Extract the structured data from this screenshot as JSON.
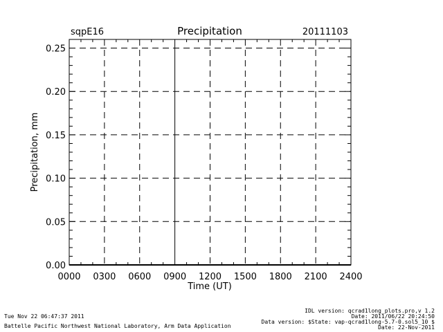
{
  "header": {
    "site": "sqpE16",
    "date": "20111103"
  },
  "chart_data": {
    "type": "line",
    "title": "Precipitation",
    "xlabel": "Time (UT)",
    "ylabel": "Precipitation, mm",
    "xlim": [
      0,
      2400
    ],
    "ylim": [
      0,
      0.26
    ],
    "x_ticks": [
      "0000",
      "0300",
      "0600",
      "0900",
      "1200",
      "1500",
      "1800",
      "2100",
      "2400"
    ],
    "y_ticks": [
      "0.00",
      "0.05",
      "0.10",
      "0.15",
      "0.20",
      "0.25"
    ],
    "grid": true,
    "series": [
      {
        "x": [
          0,
          2400
        ],
        "y": [
          0,
          0
        ]
      }
    ]
  },
  "footer": {
    "timestamp": "Tue Nov 22 06:47:37 2011",
    "lab": "Battelle Pacific Northwest National Laboratory, Arm Data Application",
    "idl_version": "IDL version: qcrad1long_plots.pro,v 1.2",
    "file_date": "Date: 2011/06/22 20:24:50",
    "data_version": "Data version: $State: vap-qcrad1long-5.7-0.sol5_10 $",
    "data_date": "Date: 22-Nov-2011"
  }
}
